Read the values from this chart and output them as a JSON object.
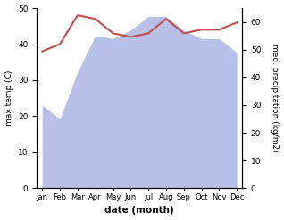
{
  "months": [
    "Jan",
    "Feb",
    "Mar",
    "Apr",
    "May",
    "Jun",
    "Jul",
    "Aug",
    "Sep",
    "Oct",
    "Nov",
    "Dec"
  ],
  "temperature": [
    38,
    40,
    48,
    47,
    43,
    42,
    43,
    47,
    43,
    44,
    44,
    46
  ],
  "precipitation": [
    30,
    25,
    42,
    55,
    54,
    57,
    62,
    62,
    57,
    54,
    54,
    49
  ],
  "temp_color": "#c0504d",
  "precip_fill_color": "#b8c0e8",
  "ylabel_left": "max temp (C)",
  "ylabel_right": "med. precipitation (kg/m2)",
  "xlabel": "date (month)",
  "ylim_left": [
    0,
    50
  ],
  "ylim_right": [
    0,
    65
  ],
  "yticks_left": [
    0,
    10,
    20,
    30,
    40,
    50
  ],
  "yticks_right": [
    0,
    10,
    20,
    30,
    40,
    50,
    60
  ],
  "bg_color": "#ffffff",
  "figsize": [
    3.18,
    2.47
  ],
  "dpi": 100
}
